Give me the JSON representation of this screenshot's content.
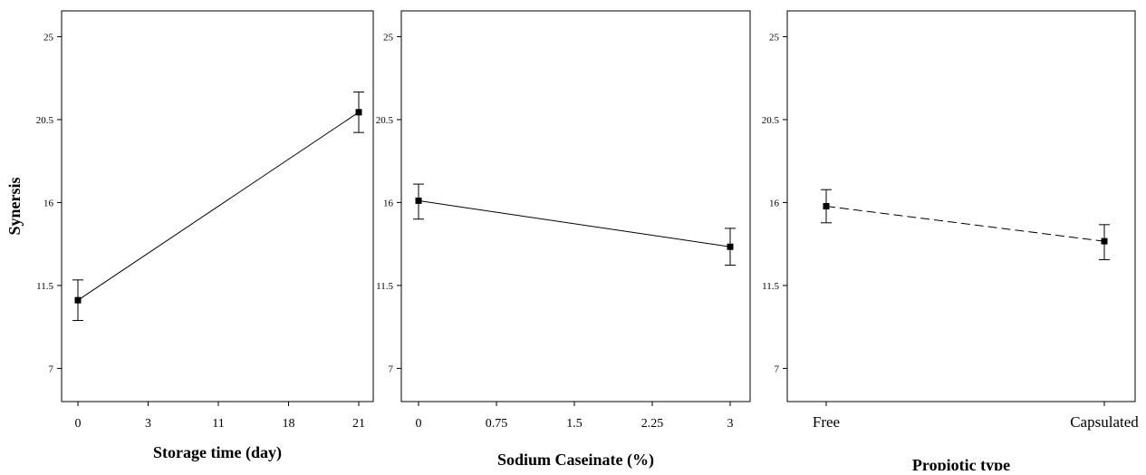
{
  "chart_data": [
    {
      "type": "line",
      "title": "",
      "xlabel": "Storage time (day)",
      "ylabel": "Synersis",
      "categories": [
        "0",
        "3",
        "11",
        "18",
        "21"
      ],
      "ylim": [
        5.2,
        26.4
      ],
      "yticks": [
        "7",
        "11.5",
        "16",
        "20.5",
        "25"
      ],
      "line_style": "solid",
      "grid": false,
      "points": [
        {
          "x": "0",
          "y": 10.7,
          "err_low": 9.6,
          "err_high": 11.8
        },
        {
          "x": "21",
          "y": 20.9,
          "err_low": 19.8,
          "err_high": 22.0
        }
      ]
    },
    {
      "type": "line",
      "title": "",
      "xlabel": "Sodium Caseinate (%)",
      "ylabel": "",
      "categories": [
        "0",
        "0.75",
        "1.5",
        "2.25",
        "3"
      ],
      "ylim": [
        5.2,
        26.4
      ],
      "yticks": [
        "7",
        "11.5",
        "16",
        "20.5",
        "25"
      ],
      "line_style": "solid",
      "grid": false,
      "points": [
        {
          "x": "0",
          "y": 16.1,
          "err_low": 15.1,
          "err_high": 17.0
        },
        {
          "x": "3",
          "y": 13.6,
          "err_low": 12.6,
          "err_high": 14.6
        }
      ]
    },
    {
      "type": "line",
      "title": "",
      "xlabel": "Propiotic type",
      "ylabel": "",
      "categories": [
        "Free",
        "Capsulated"
      ],
      "ylim": [
        5.2,
        26.4
      ],
      "yticks": [
        "7",
        "11.5",
        "16",
        "20.5",
        "25"
      ],
      "line_style": "dashed",
      "grid": false,
      "points": [
        {
          "x": "Free",
          "y": 15.8,
          "err_low": 14.9,
          "err_high": 16.7
        },
        {
          "x": "Capsulated",
          "y": 13.9,
          "err_low": 12.9,
          "err_high": 14.8
        }
      ]
    }
  ]
}
